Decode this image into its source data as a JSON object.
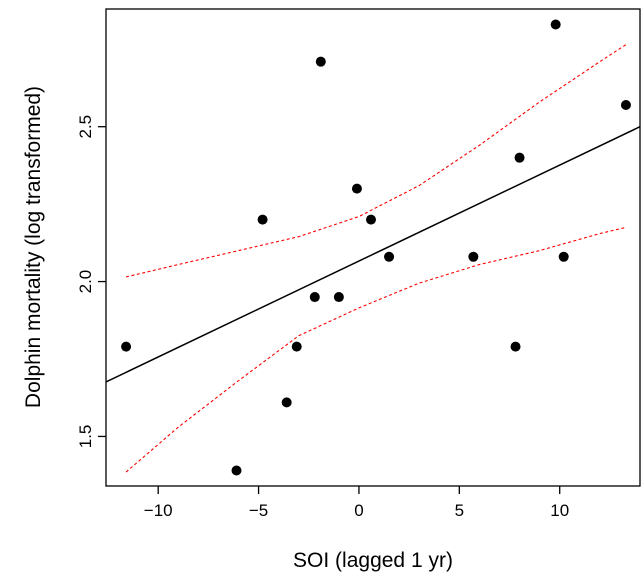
{
  "chart_data": {
    "type": "scatter",
    "title": "",
    "xlabel": "SOI (lagged 1 yr)",
    "ylabel": "Dolphin mortality (log transformed)",
    "xlim": [
      -12.6,
      14.0
    ],
    "ylim": [
      1.34,
      2.88
    ],
    "x_ticks": [
      -10,
      -5,
      0,
      5,
      10
    ],
    "x_tick_labels": [
      "−10",
      "−5",
      "0",
      "5",
      "10"
    ],
    "y_ticks": [
      1.5,
      2.0,
      2.5
    ],
    "y_tick_labels": [
      "1.5",
      "2.0",
      "2.5"
    ],
    "grid": false,
    "points": [
      {
        "x": -11.6,
        "y": 1.79
      },
      {
        "x": -6.1,
        "y": 1.39
      },
      {
        "x": -4.8,
        "y": 2.2
      },
      {
        "x": -3.6,
        "y": 1.61
      },
      {
        "x": -3.1,
        "y": 1.79
      },
      {
        "x": -2.2,
        "y": 1.95
      },
      {
        "x": -1.9,
        "y": 2.71
      },
      {
        "x": -1.0,
        "y": 1.95
      },
      {
        "x": -0.1,
        "y": 2.3
      },
      {
        "x": 0.6,
        "y": 2.2
      },
      {
        "x": 1.5,
        "y": 2.08
      },
      {
        "x": 5.7,
        "y": 2.08
      },
      {
        "x": 7.8,
        "y": 1.79
      },
      {
        "x": 8.0,
        "y": 2.4
      },
      {
        "x": 9.8,
        "y": 2.83
      },
      {
        "x": 10.2,
        "y": 2.08
      },
      {
        "x": 13.3,
        "y": 2.57
      }
    ],
    "fit_line": {
      "x": [
        -12.6,
        14.0
      ],
      "y": [
        1.676,
        2.5
      ],
      "color": "#000000"
    },
    "confidence_band": {
      "color": "#ff0000",
      "x": [
        -11.6,
        -9,
        -6,
        -3,
        0,
        3,
        6,
        9,
        12,
        13.3
      ],
      "upper": [
        2.015,
        2.055,
        2.1,
        2.145,
        2.21,
        2.31,
        2.44,
        2.58,
        2.71,
        2.765
      ],
      "lower": [
        1.385,
        1.53,
        1.68,
        1.825,
        1.915,
        1.995,
        2.055,
        2.1,
        2.155,
        2.175
      ]
    }
  }
}
